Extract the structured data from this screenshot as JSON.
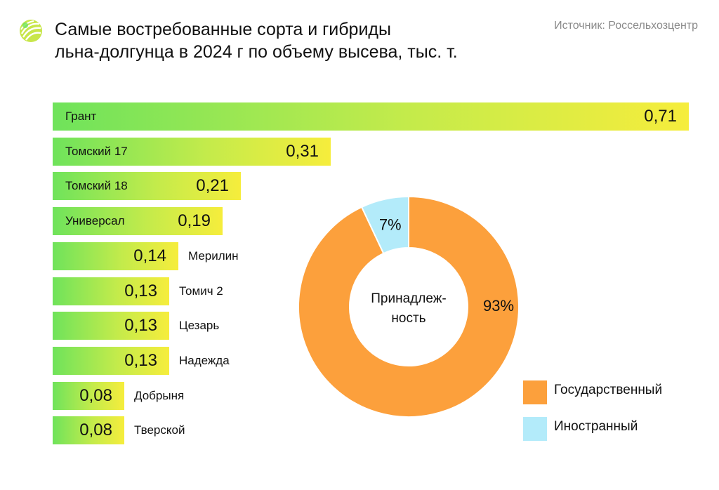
{
  "header": {
    "title_line1": "Самые востребованные сорта и гибриды",
    "title_line2": "льна-долгунца в 2024 г по объему высева, тыс. т.",
    "source": "Источник: Россельхозцентр",
    "logo_icon": "leaf-sprout-icon"
  },
  "colors": {
    "bar_start": "#6fe35b",
    "bar_end": "#f6ed3c",
    "state": "#fca03c",
    "foreign": "#b3ebfa"
  },
  "chart_data": [
    {
      "type": "bar",
      "orientation": "horizontal",
      "title": "Самые востребованные сорта и гибриды льна-долгунца в 2024 г по объему высева, тыс. т.",
      "categories": [
        "Грант",
        "Томский 17",
        "Томский 18",
        "Универсал",
        "Мерилин",
        "Томич 2",
        "Цезарь",
        "Надежда",
        "Добрыня",
        "Тверской"
      ],
      "values": [
        0.71,
        0.31,
        0.21,
        0.19,
        0.14,
        0.13,
        0.13,
        0.13,
        0.08,
        0.08
      ],
      "value_labels": [
        "0,71",
        "0,31",
        "0,21",
        "0,19",
        "0,14",
        "0,13",
        "0,13",
        "0,13",
        "0,08",
        "0,08"
      ],
      "xlim": [
        0,
        0.71
      ]
    },
    {
      "type": "pie",
      "donut": true,
      "center_label": "Принадлеж-\nность",
      "center_line1": "Принадлеж-",
      "center_line2": "ность",
      "slices": [
        {
          "name": "Государственный",
          "value": 93,
          "label": "93%"
        },
        {
          "name": "Иностранный",
          "value": 7,
          "label": "7%"
        }
      ]
    }
  ]
}
